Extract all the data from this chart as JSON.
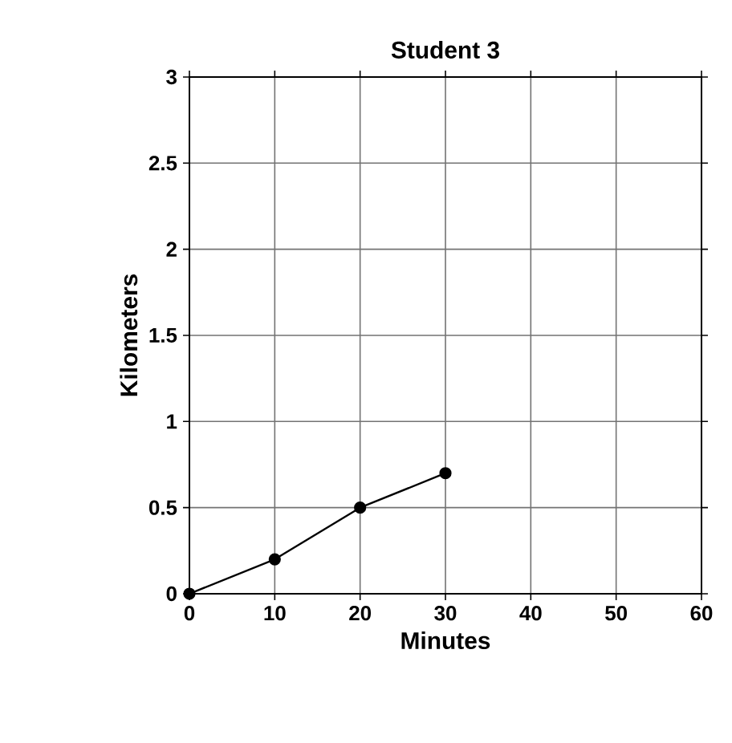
{
  "chart_data": {
    "type": "line",
    "title": "Student 3",
    "xlabel": "Minutes",
    "ylabel": "Kilometers",
    "x": [
      0,
      10,
      20,
      30
    ],
    "series": [
      {
        "color": "#000000",
        "values": [
          0,
          0.2,
          0.5,
          0.7
        ]
      }
    ],
    "xlim": [
      0,
      60
    ],
    "xticks": [
      0,
      10,
      20,
      30,
      40,
      50,
      60
    ],
    "ylim": [
      0,
      3
    ],
    "yticks": [
      0,
      0.5,
      1,
      1.5,
      2,
      2.5,
      3
    ],
    "grid": true,
    "marker": "circle",
    "line_style": "solid"
  }
}
